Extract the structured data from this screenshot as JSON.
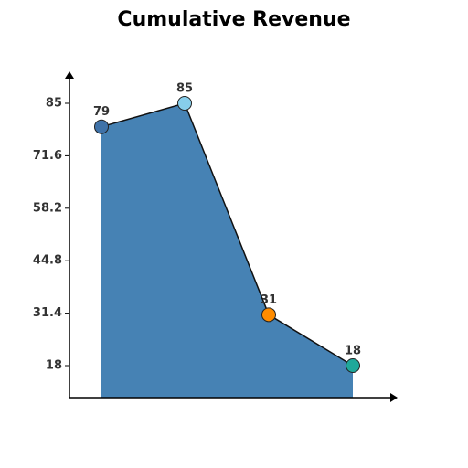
{
  "chart_data": {
    "type": "area",
    "title": "Cumulative Revenue",
    "categories": [
      null,
      null,
      null,
      null
    ],
    "values": [
      79,
      85,
      31,
      18
    ],
    "color": "#4682b4",
    "line_color": "#111111",
    "point_colors": [
      "#3f72a8",
      "#87ceeb",
      "#ff8c00",
      "#1fa89a"
    ],
    "ylim": [
      9.83,
      93.17
    ],
    "yticks": [
      18,
      31.4,
      44.8,
      58.2,
      71.6,
      85
    ]
  }
}
